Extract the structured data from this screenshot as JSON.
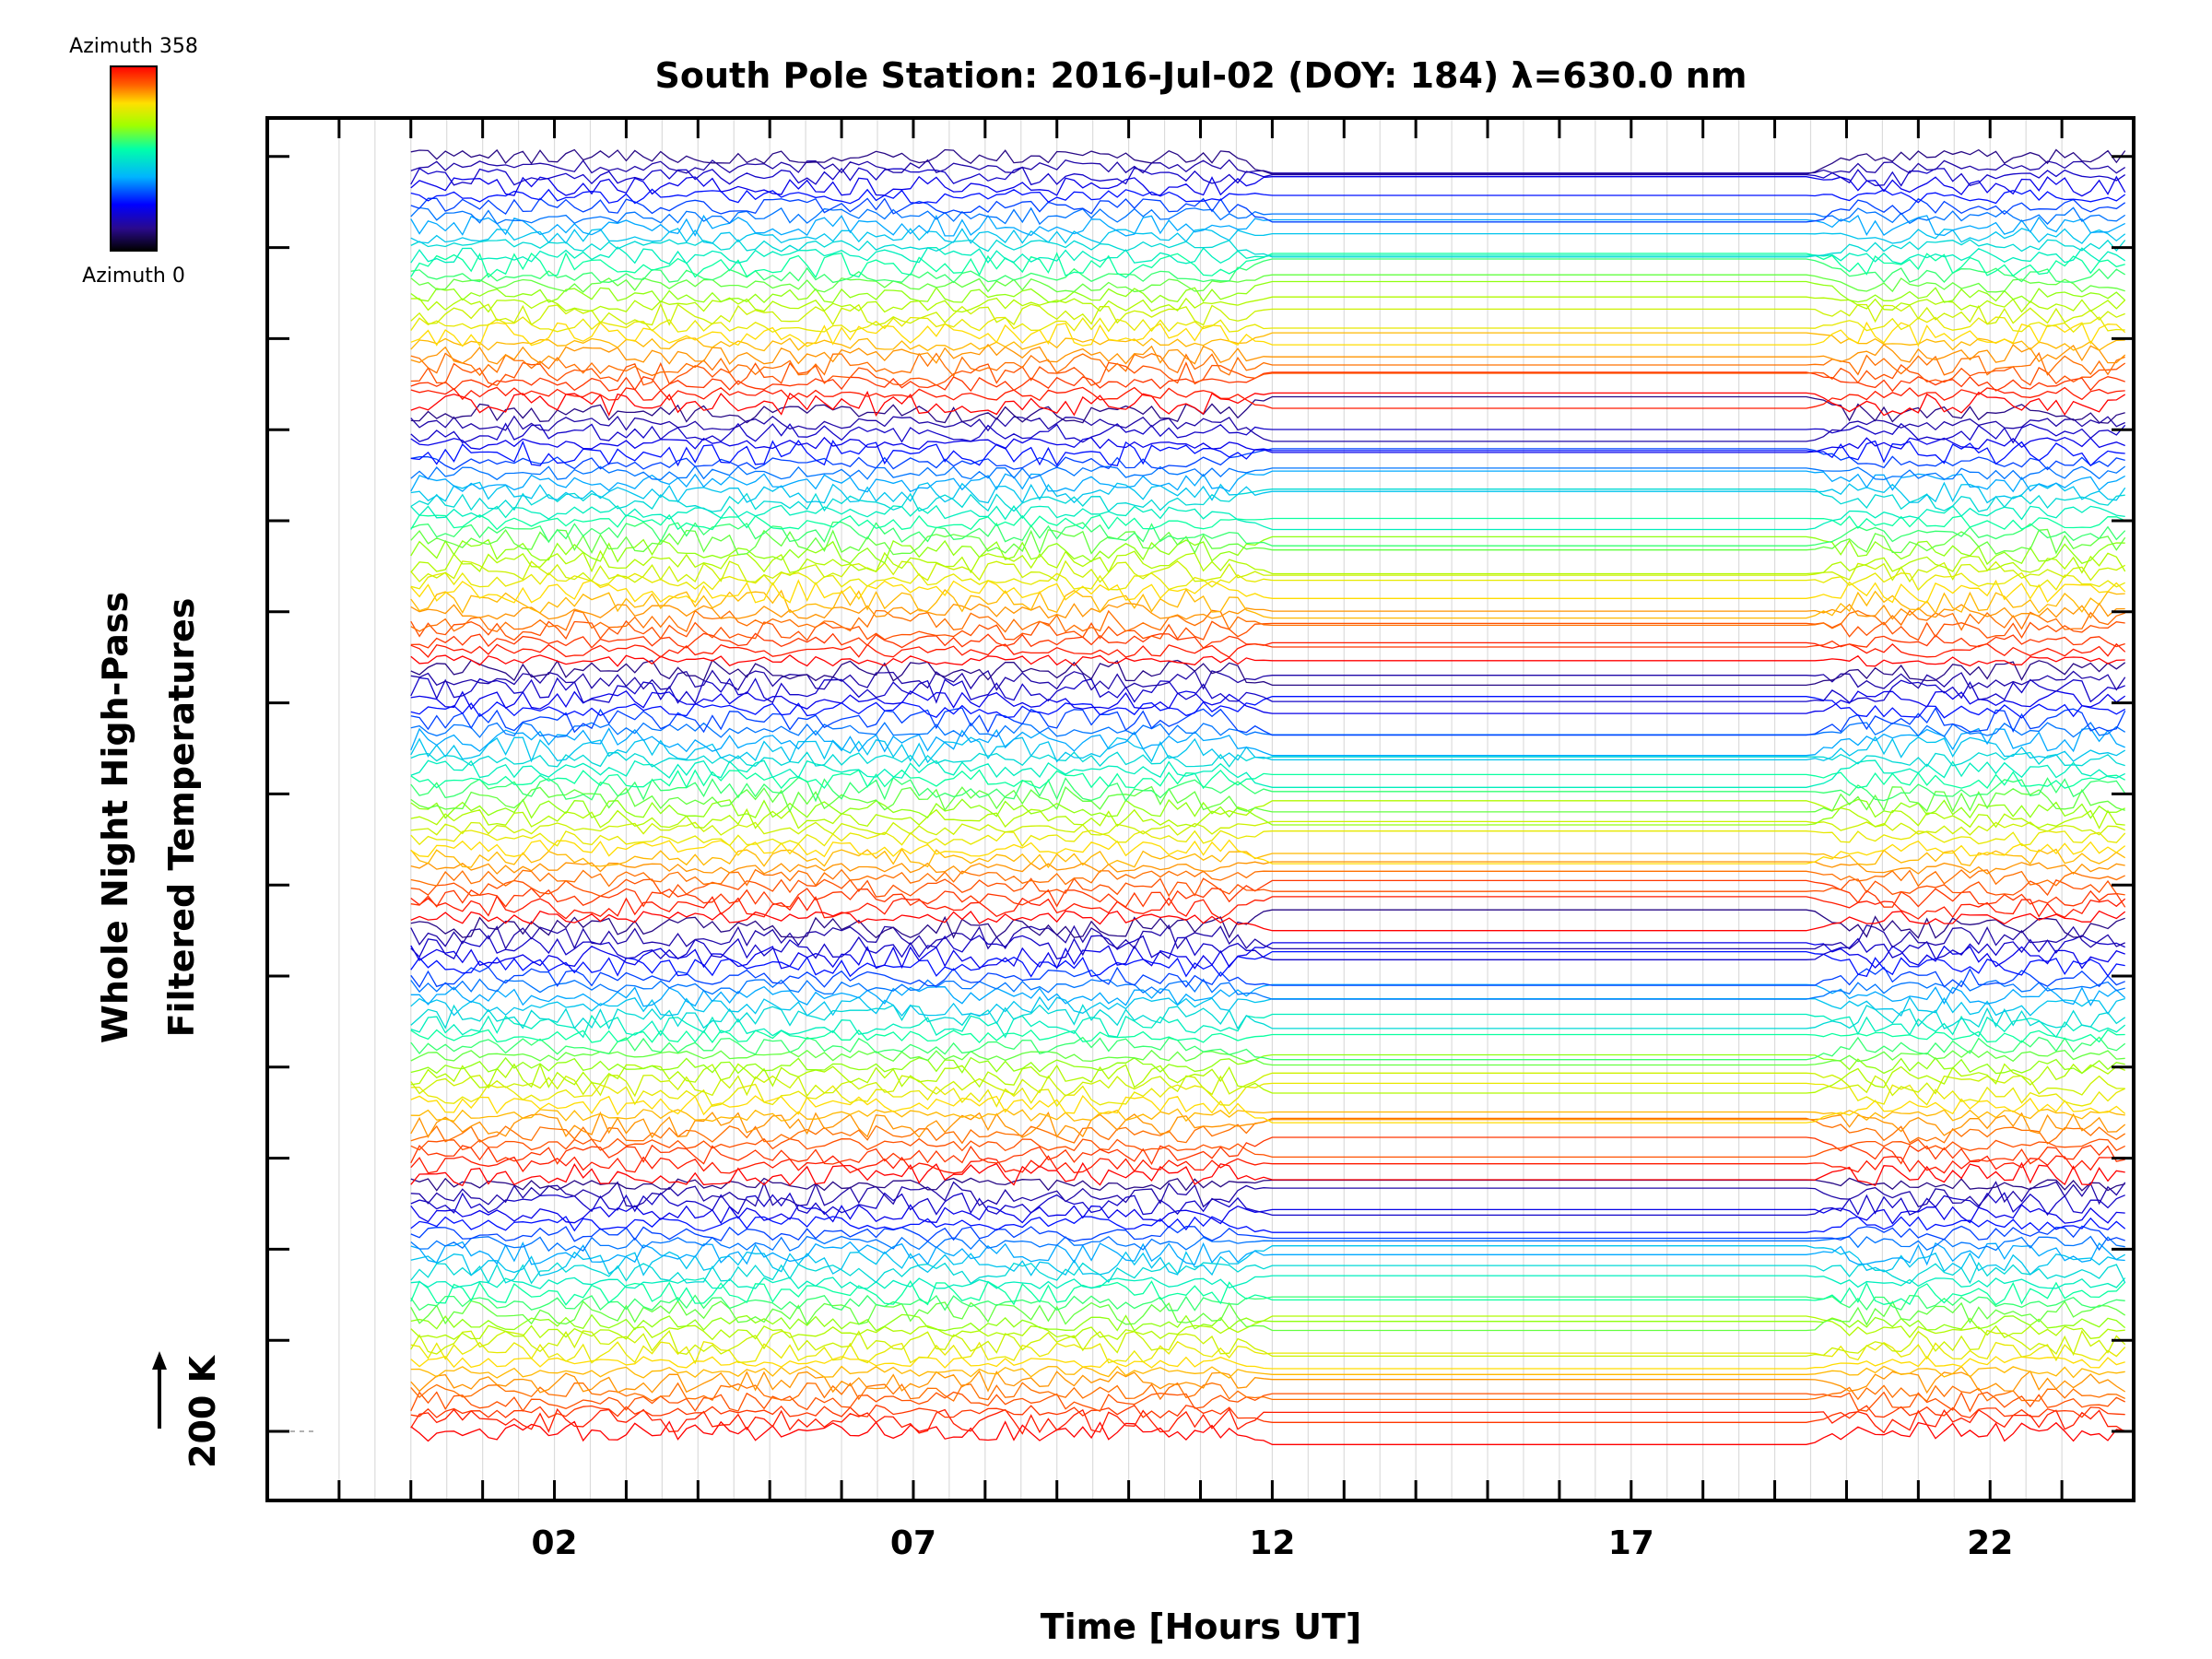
{
  "chart_data": {
    "type": "line",
    "title": "South Pole Station: 2016-Jul-02 (DOY: 184) λ=630.0 nm",
    "xlabel": "Time [Hours UT]",
    "ylabel_line1": "Whole Night High-Pass",
    "ylabel_line2": "Filtered Temperatures",
    "scale_label": "200 K",
    "x_ticks": [
      "02",
      "07",
      "12",
      "17",
      "22"
    ],
    "xlim": [
      -2,
      24
    ],
    "colorbar": {
      "top_label": "Azimuth 358",
      "bottom_label": "Azimuth 0",
      "range": [
        0,
        358
      ]
    },
    "series": [],
    "series_count": 130,
    "daylight_gap_hours": [
      12.0,
      19.5
    ],
    "data_start_hour": 0.0,
    "grid": true,
    "baseline_dashed": true,
    "colors": {
      "axis": "#000000",
      "grid": "#dcdcdc",
      "colormap": [
        "#000000",
        "#2a0a8c",
        "#0000ff",
        "#00b4ff",
        "#00ffaa",
        "#a0ff00",
        "#ffe000",
        "#ff6000",
        "#ff0000"
      ]
    }
  }
}
